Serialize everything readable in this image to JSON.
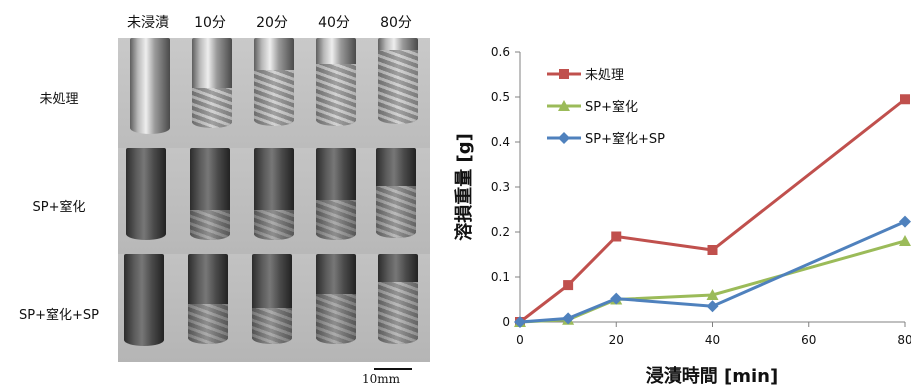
{
  "figure": {
    "column_headers": [
      "未浸漬",
      "10分",
      "20分",
      "40分",
      "80分"
    ],
    "row_headers": [
      "未処理",
      "SP+窒化",
      "SP+窒化+SP"
    ],
    "scale_bar_label": "10mm"
  },
  "chart_data": {
    "type": "line",
    "title": "",
    "xlabel": "浸漬時間 [min]",
    "ylabel": "溶損重量 [g]",
    "x": [
      0,
      10,
      20,
      40,
      80
    ],
    "xticks": [
      "0",
      "20",
      "40",
      "60",
      "80"
    ],
    "yticks": [
      "0",
      "0.1",
      "0.2",
      "0.3",
      "0.4",
      "0.5",
      "0.6"
    ],
    "xlim": [
      0,
      80
    ],
    "ylim": [
      0,
      0.6
    ],
    "grid": false,
    "legend_position": "top-left",
    "series": [
      {
        "name": "未処理",
        "color": "#c0504d",
        "marker": "square",
        "values": [
          0,
          0.082,
          0.19,
          0.16,
          0.495
        ]
      },
      {
        "name": "SP+窒化",
        "color": "#9bbb59",
        "marker": "triangle",
        "values": [
          0,
          0.005,
          0.05,
          0.06,
          0.18
        ]
      },
      {
        "name": "SP+窒化+SP",
        "color": "#4f81bd",
        "marker": "diamond",
        "values": [
          0,
          0.008,
          0.052,
          0.035,
          0.223
        ]
      }
    ]
  }
}
